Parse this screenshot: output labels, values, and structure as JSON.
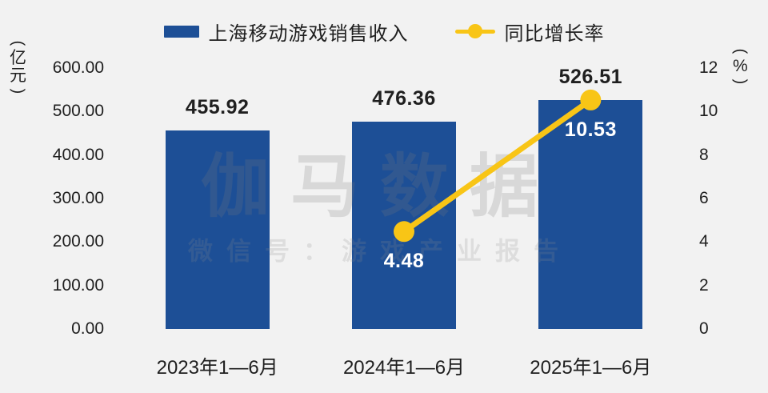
{
  "page": {
    "background_color": "#f2f2f2",
    "text_color": "#1f1f1f"
  },
  "legend": {
    "items": [
      {
        "label": "上海移动游戏销售收入",
        "marker": "bar-swatch",
        "color": "#1d4f96"
      },
      {
        "label": "同比增长率",
        "marker": "line-dot-swatch",
        "color": "#f8c516"
      }
    ]
  },
  "watermark": {
    "title": "伽马数据",
    "subtitle": "微信号：游戏产业报告"
  },
  "chart_data": {
    "type": "bar",
    "subtype": "bar+line-dual-axis",
    "categories": [
      "2023年1—6月",
      "2024年1—6月",
      "2025年1—6月"
    ],
    "series": [
      {
        "name": "上海移动游戏销售收入",
        "type": "bar",
        "axis": "left",
        "values": [
          455.92,
          476.36,
          526.51
        ],
        "data_labels": [
          "455.92",
          "476.36",
          "526.51"
        ],
        "color": "#1d4f96",
        "label_color": "#1f1f1f"
      },
      {
        "name": "同比增长率",
        "type": "line",
        "axis": "right",
        "values": [
          null,
          4.48,
          10.53
        ],
        "data_labels": [
          null,
          "4.48",
          "10.53"
        ],
        "color": "#f8c516",
        "label_color": "#ffffff"
      }
    ],
    "left_axis": {
      "unit": "(亿元)",
      "min": 0,
      "max": 600,
      "step": 100,
      "ticks": [
        "600.00",
        "500.00",
        "400.00",
        "300.00",
        "200.00",
        "100.00",
        "0.00"
      ]
    },
    "right_axis": {
      "unit": "(%)",
      "min": 0,
      "max": 12,
      "step": 2,
      "ticks": [
        "12",
        "10",
        "8",
        "6",
        "4",
        "2",
        "0"
      ]
    },
    "grid": false,
    "legend_position": "top-center"
  }
}
